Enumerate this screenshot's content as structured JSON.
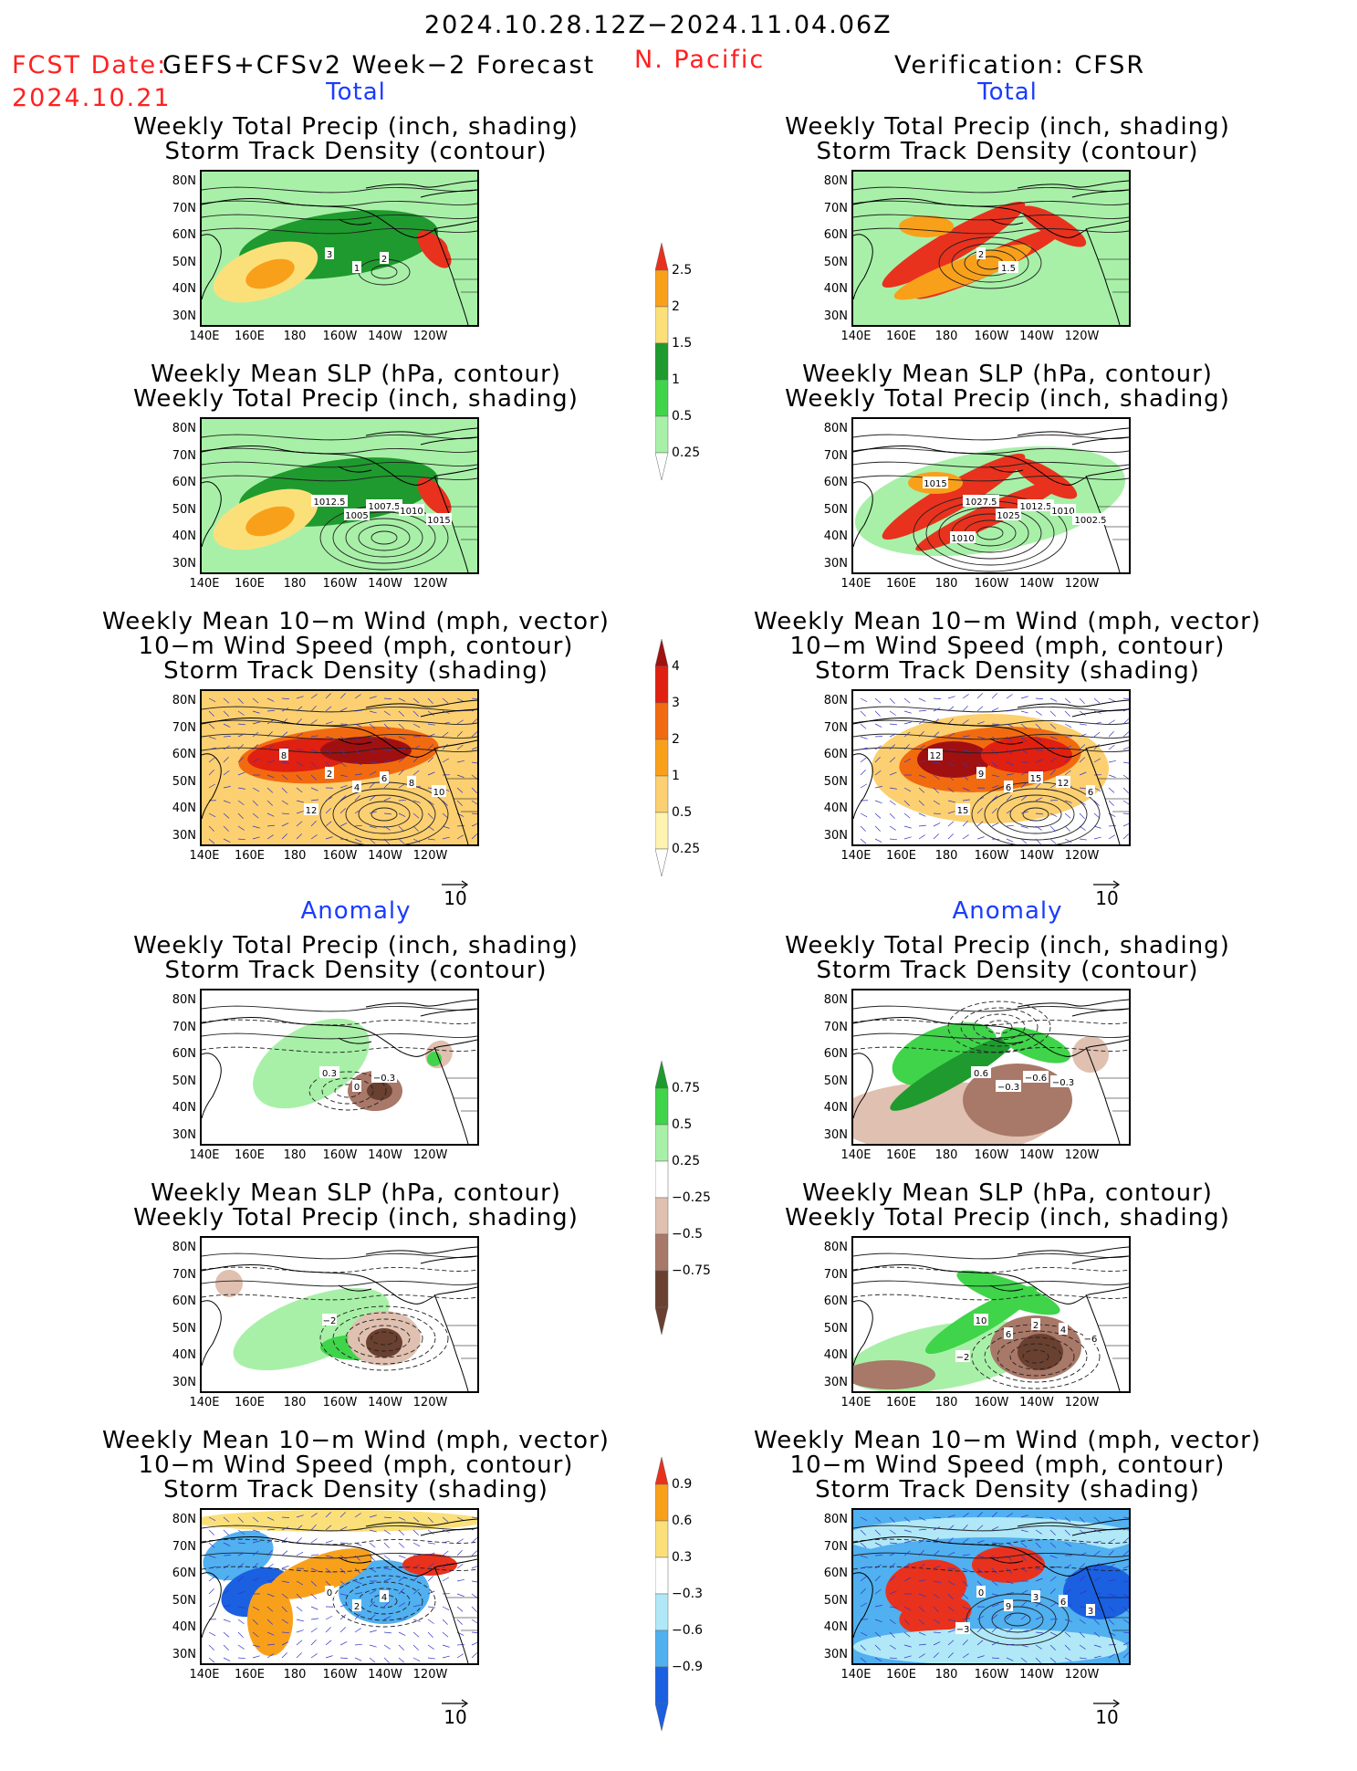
{
  "header": {
    "period": "2024.10.28.12Z−2024.11.04.06Z",
    "fcst_label": "FCST Date:",
    "fcst_model": "GEFS+CFSv2 Week−2 Forecast",
    "fcst_date": "2024.10.21",
    "region": "N. Pacific",
    "verification": "Verification: CFSR"
  },
  "sections": {
    "total": "Total",
    "anomaly": "Anomaly"
  },
  "panel_titles": {
    "precip_track": [
      "Weekly Total Precip (inch, shading)",
      "Storm Track Density (contour)"
    ],
    "slp_precip": [
      "Weekly Mean SLP (hPa, contour)",
      "Weekly Total Precip (inch, shading)"
    ],
    "wind_track": [
      "Weekly Mean 10−m Wind (mph, vector)",
      "10−m Wind Speed (mph, contour)",
      "Storm Track Density (shading)"
    ]
  },
  "axes": {
    "lat_labels": [
      "80N",
      "70N",
      "60N",
      "50N",
      "40N",
      "30N"
    ],
    "lon_labels": [
      "140E",
      "160E",
      "180",
      "160W",
      "140W",
      "120W"
    ]
  },
  "vector_ref": "10",
  "colorbars": {
    "precip_total": {
      "labels": [
        "2.5",
        "2",
        "1.5",
        "1",
        "0.5",
        "0.25"
      ],
      "colors": [
        "#e8321e",
        "#f9a01b",
        "#fbe07a",
        "#1f9a2e",
        "#3fd44a",
        "#a8f0a8"
      ]
    },
    "track_total": {
      "labels": [
        "4",
        "3",
        "2",
        "1",
        "0.5",
        "0.25"
      ],
      "colors": [
        "#a01010",
        "#e02010",
        "#f26a10",
        "#f9a01b",
        "#fcd070",
        "#fff3b0"
      ]
    },
    "precip_anom": {
      "labels": [
        "0.75",
        "0.5",
        "0.25",
        "−0.25",
        "−0.5",
        "−0.75"
      ],
      "colors": [
        "#1f9a2e",
        "#3fd44a",
        "#a8f0a8",
        "#ffffff",
        "#e0c0b0",
        "#a87868",
        "#6a4030"
      ]
    },
    "track_anom": {
      "labels": [
        "0.9",
        "0.6",
        "0.3",
        "−0.3",
        "−0.6",
        "−0.9"
      ],
      "colors": [
        "#e8321e",
        "#f9a01b",
        "#fbe07a",
        "#ffffff",
        "#b0e8f8",
        "#50b0f0",
        "#1a60e0"
      ]
    }
  },
  "contour_labels": {
    "fc_total_precip": [
      "3",
      "1",
      "2"
    ],
    "fc_total_slp": [
      "1012.5",
      "1005",
      "1007.5",
      "1010",
      "1015"
    ],
    "fc_total_wind": [
      "2",
      "4",
      "6",
      "8",
      "10",
      "12",
      "8"
    ],
    "ob_total_precip": [
      "2",
      "1.5"
    ],
    "ob_total_slp": [
      "1027.5",
      "1025",
      "1012.5",
      "1010",
      "1002.5",
      "1010",
      "1015"
    ],
    "ob_total_wind": [
      "9",
      "6",
      "15",
      "12",
      "6",
      "15",
      "12"
    ],
    "fc_anom_precip": [
      "0.3",
      "0",
      "−0.3"
    ],
    "fc_anom_slp": [
      "−2"
    ],
    "fc_anom_wind": [
      "0",
      "2",
      "4"
    ],
    "ob_anom_precip": [
      "0.6",
      "−0.3",
      "−0.6",
      "−0.3"
    ],
    "ob_anom_slp": [
      "10",
      "6",
      "2",
      "4",
      "−6",
      "−2"
    ],
    "ob_anom_wind": [
      "0",
      "9",
      "3",
      "6",
      "3",
      "−3"
    ]
  }
}
